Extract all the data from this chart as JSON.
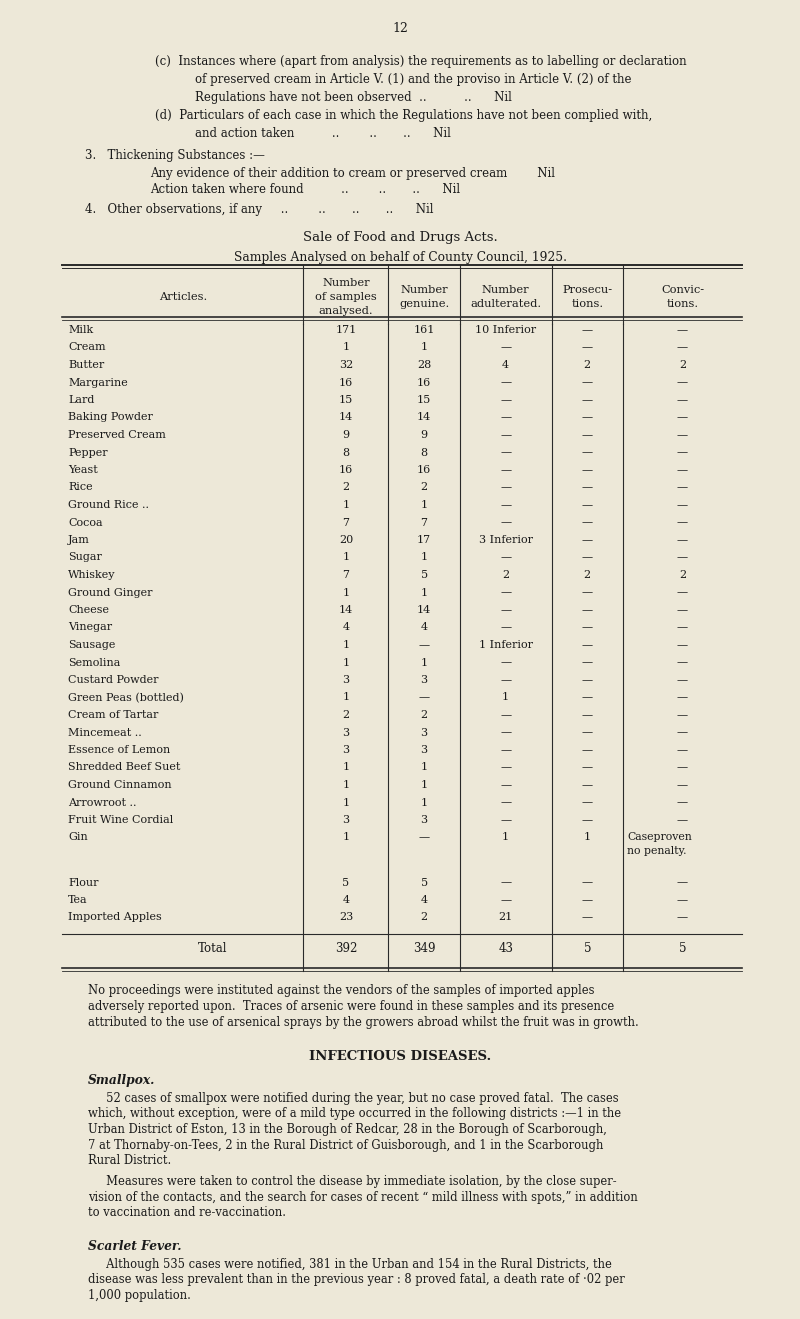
{
  "bg_color": "#ede8d8",
  "text_color": "#1a1a1a",
  "page_number": "12",
  "table_title1": "Sale of Food and Drugs Acts.",
  "table_title2": "Samples Analysed on behalf of County Council, 1925.",
  "col_headers": [
    "Articles.",
    "Number\nof samples\nanalysed.",
    "Number\ngenuine.",
    "Number\nadulterated.",
    "Prosecu-\ntions.",
    "Convic-\ntions."
  ],
  "rows": [
    [
      "Milk",
      "171",
      "161",
      "10 Inferior",
      "—",
      "—"
    ],
    [
      "Cream",
      "1",
      "1",
      "—",
      "—",
      "—"
    ],
    [
      "Butter",
      "32",
      "28",
      "4",
      "2",
      "2"
    ],
    [
      "Margarine",
      "16",
      "16",
      "—",
      "—",
      "—"
    ],
    [
      "Lard",
      "15",
      "15",
      "—",
      "—",
      "—"
    ],
    [
      "Baking Powder",
      "14",
      "14",
      "—",
      "—",
      "—"
    ],
    [
      "Preserved Cream",
      "9",
      "9",
      "—",
      "—",
      "—"
    ],
    [
      "Pepper",
      "8",
      "8",
      "—",
      "—",
      "—"
    ],
    [
      "Yeast",
      "16",
      "16",
      "—",
      "—",
      "—"
    ],
    [
      "Rice",
      "2",
      "2",
      "—",
      "—",
      "—"
    ],
    [
      "Ground Rice ..",
      "1",
      "1",
      "—",
      "—",
      "—"
    ],
    [
      "Cocoa",
      "7",
      "7",
      "—",
      "—",
      "—"
    ],
    [
      "Jam",
      "20",
      "17",
      "3 Inferior",
      "—",
      "—"
    ],
    [
      "Sugar",
      "1",
      "1",
      "—",
      "—",
      "—"
    ],
    [
      "Whiskey",
      "7",
      "5",
      "2",
      "2",
      "2"
    ],
    [
      "Ground Ginger",
      "1",
      "1",
      "—",
      "—",
      "—"
    ],
    [
      "Cheese",
      "14",
      "14",
      "—",
      "—",
      "—"
    ],
    [
      "Vinegar",
      "4",
      "4",
      "—",
      "—",
      "—"
    ],
    [
      "Sausage",
      "1",
      "—",
      "1 Inferior",
      "—",
      "—"
    ],
    [
      "Semolina",
      "1",
      "1",
      "—",
      "—",
      "—"
    ],
    [
      "Custard Powder",
      "3",
      "3",
      "—",
      "—",
      "—"
    ],
    [
      "Green Peas (bottled)",
      "1",
      "—",
      "1",
      "—",
      "—"
    ],
    [
      "Cream of Tartar",
      "2",
      "2",
      "—",
      "—",
      "—"
    ],
    [
      "Mincemeat ..",
      "3",
      "3",
      "—",
      "—",
      "—"
    ],
    [
      "Essence of Lemon",
      "3",
      "3",
      "—",
      "—",
      "—"
    ],
    [
      "Shredded Beef Suet",
      "1",
      "1",
      "—",
      "—",
      "—"
    ],
    [
      "Ground Cinnamon",
      "1",
      "1",
      "—",
      "—",
      "—"
    ],
    [
      "Arrowroot ..",
      "1",
      "1",
      "—",
      "—",
      "—"
    ],
    [
      "Fruit Wine Cordial",
      "3",
      "3",
      "—",
      "—",
      "—"
    ],
    [
      "Gin",
      "1",
      "—",
      "1",
      "1",
      "Caseproven\nno penalty."
    ],
    [
      "Flour",
      "5",
      "5",
      "—",
      "—",
      "—"
    ],
    [
      "Tea",
      "4",
      "4",
      "—",
      "—",
      "—"
    ],
    [
      "Imported Apples",
      "23",
      "2",
      "21",
      "—",
      "—"
    ]
  ],
  "total_row": [
    "Total",
    "392",
    "349",
    "43",
    "5",
    "5"
  ],
  "footer_lines": [
    "No proceedings were instituted against the vendors of the samples of imported apples",
    "adversely reported upon.  Traces of arsenic were found in these samples and its presence",
    "attributed to the use of arsenical sprays by the growers abroad whilst the fruit was in growth."
  ],
  "infectious_title": "INFECTIOUS DISEASES.",
  "smallpox_heading": "Smallpox.",
  "smallpox_para1": "52 cases of smallpox were notified during the year, but no case proved fatal.  The cases which, without exception, were of a mild type occurred in the following districts :—1 in the Urban District of Eston, 13 in the Borough of Redcar, 28 in the Borough of Scarborough, 7 at Thornaby-on-Tees, 2 in the Rural District of Guisborough, and 1 in the Scarborough Rural District.",
  "smallpox_para2": "Measures were taken to control the disease by immediate isolation, by the close supervision of the contacts, and the search for cases of recent “ mild illness with spots,” in addition to vaccination and re-vaccination.",
  "scarlet_heading": "Scarlet Fever.",
  "scarlet_para": "Although 535 cases were notified, 381 in the Urban and 154 in the Rural Districts, the disease was less prevalent than in the previous year : 8 proved fatal, a death rate of ·02 per 1,000 population."
}
